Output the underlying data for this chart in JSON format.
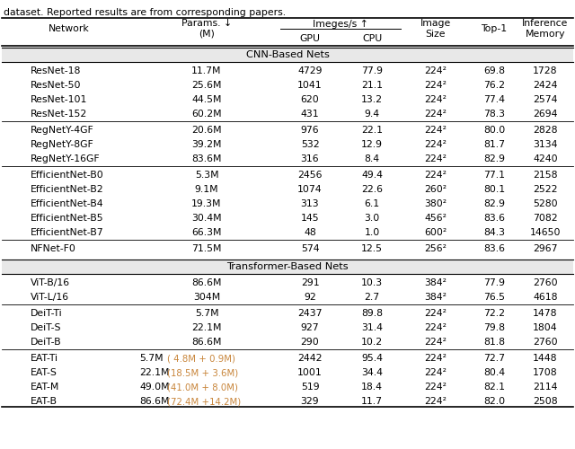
{
  "title_text": "dataset. Reported results are from corresponding papers.",
  "orange_color": "#C8853A",
  "text_color": "#000000",
  "bg_color": "#FFFFFF",
  "section_bg": "#E8E8E8",
  "font_size": 7.8,
  "header_font_size": 7.8,
  "section_font_size": 8.2,
  "sections": [
    {
      "section_title": "CNN-Based Nets",
      "groups": [
        {
          "rows": [
            [
              "ResNet-18",
              "11.7M",
              "4729",
              "77.9",
              "224²",
              "69.8",
              "1728"
            ],
            [
              "ResNet-50",
              "25.6M",
              "1041",
              "21.1",
              "224²",
              "76.2",
              "2424"
            ],
            [
              "ResNet-101",
              "44.5M",
              "620",
              "13.2",
              "224²",
              "77.4",
              "2574"
            ],
            [
              "ResNet-152",
              "60.2M",
              "431",
              "9.4",
              "224²",
              "78.3",
              "2694"
            ]
          ]
        },
        {
          "rows": [
            [
              "RegNetY-4GF",
              "20.6M",
              "976",
              "22.1",
              "224²",
              "80.0",
              "2828"
            ],
            [
              "RegNetY-8GF",
              "39.2M",
              "532",
              "12.9",
              "224²",
              "81.7",
              "3134"
            ],
            [
              "RegNetY-16GF",
              "83.6M",
              "316",
              "8.4",
              "224²",
              "82.9",
              "4240"
            ]
          ]
        },
        {
          "rows": [
            [
              "EfficientNet-B0",
              "5.3M",
              "2456",
              "49.4",
              "224²",
              "77.1",
              "2158"
            ],
            [
              "EfficientNet-B2",
              "9.1M",
              "1074",
              "22.6",
              "260²",
              "80.1",
              "2522"
            ],
            [
              "EfficientNet-B4",
              "19.3M",
              "313",
              "6.1",
              "380²",
              "82.9",
              "5280"
            ],
            [
              "EfficientNet-B5",
              "30.4M",
              "145",
              "3.0",
              "456²",
              "83.6",
              "7082"
            ],
            [
              "EfficientNet-B7",
              "66.3M",
              "48",
              "1.0",
              "600²",
              "84.3",
              "14650"
            ]
          ]
        },
        {
          "rows": [
            [
              "NFNet-F0",
              "71.5M",
              "574",
              "12.5",
              "256²",
              "83.6",
              "2967"
            ]
          ]
        }
      ]
    },
    {
      "section_title": "Transformer-Based Nets",
      "groups": [
        {
          "rows": [
            [
              "ViT-B/16",
              "86.6M",
              "291",
              "10.3",
              "384²",
              "77.9",
              "2760"
            ],
            [
              "ViT-L/16",
              "304M",
              "92",
              "2.7",
              "384²",
              "76.5",
              "4618"
            ]
          ]
        },
        {
          "rows": [
            [
              "DeiT-Ti",
              "5.7M",
              "2437",
              "89.8",
              "224²",
              "72.2",
              "1478"
            ],
            [
              "DeiT-S",
              "22.1M",
              "927",
              "31.4",
              "224²",
              "79.8",
              "1804"
            ],
            [
              "DeiT-B",
              "86.6M",
              "290",
              "10.2",
              "224²",
              "81.8",
              "2760"
            ]
          ]
        },
        {
          "rows_special": [
            [
              "EAT-Ti",
              "5.7M",
              "( 4.8M + 0.9M)",
              "2442",
              "95.4",
              "224²",
              "72.7",
              "1448"
            ],
            [
              "EAT-S",
              "22.1M",
              "(18.5M + 3.6M)",
              "1001",
              "34.4",
              "224²",
              "80.4",
              "1708"
            ],
            [
              "EAT-M",
              "49.0M",
              "(41.0M + 8.0M)",
              "519",
              "18.4",
              "224²",
              "82.1",
              "2114"
            ],
            [
              "EAT-B",
              "86.6M",
              "(72.4M +14.2M)",
              "329",
              "11.7",
              "224²",
              "82.0",
              "2508"
            ]
          ]
        }
      ]
    }
  ]
}
